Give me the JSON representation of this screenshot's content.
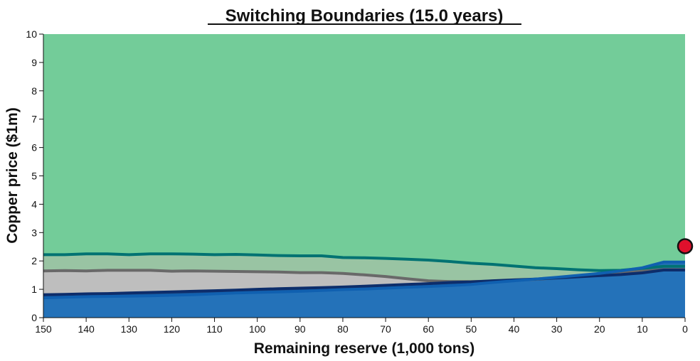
{
  "chart_data": {
    "type": "area",
    "title": "Switching Boundaries (15.0 years)",
    "xlabel": "Remaining reserve (1,000 tons)",
    "ylabel": "Copper price ($1m)",
    "xlim": [
      150,
      0
    ],
    "ylim": [
      0,
      10
    ],
    "x_reversed": true,
    "x_ticks": [
      150,
      140,
      130,
      120,
      110,
      100,
      90,
      80,
      70,
      60,
      50,
      40,
      30,
      20,
      10,
      0
    ],
    "y_ticks": [
      0,
      1,
      2,
      3,
      4,
      5,
      6,
      7,
      8,
      9,
      10
    ],
    "grid": false,
    "legend": "none",
    "background_color": "#73cc99",
    "series": [
      {
        "key": "teal",
        "line_color": "#007272",
        "fill_color": "#99c4a3",
        "points": [
          [
            150,
            2.22
          ],
          [
            145,
            2.22
          ],
          [
            140,
            2.25
          ],
          [
            135,
            2.25
          ],
          [
            130,
            2.22
          ],
          [
            125,
            2.25
          ],
          [
            120,
            2.25
          ],
          [
            115,
            2.24
          ],
          [
            110,
            2.22
          ],
          [
            105,
            2.23
          ],
          [
            100,
            2.21
          ],
          [
            95,
            2.19
          ],
          [
            90,
            2.18
          ],
          [
            85,
            2.18
          ],
          [
            80,
            2.12
          ],
          [
            75,
            2.11
          ],
          [
            70,
            2.09
          ],
          [
            65,
            2.06
          ],
          [
            60,
            2.03
          ],
          [
            55,
            1.98
          ],
          [
            50,
            1.92
          ],
          [
            45,
            1.88
          ],
          [
            40,
            1.82
          ],
          [
            35,
            1.76
          ],
          [
            30,
            1.73
          ],
          [
            25,
            1.69
          ],
          [
            20,
            1.66
          ],
          [
            15,
            1.67
          ],
          [
            10,
            1.74
          ],
          [
            5,
            1.81
          ],
          [
            0,
            1.81
          ]
        ]
      },
      {
        "key": "gray",
        "line_color": "#696969",
        "fill_color": "#bebebe",
        "points": [
          [
            150,
            1.65
          ],
          [
            145,
            1.66
          ],
          [
            140,
            1.65
          ],
          [
            135,
            1.67
          ],
          [
            130,
            1.67
          ],
          [
            125,
            1.67
          ],
          [
            120,
            1.64
          ],
          [
            115,
            1.65
          ],
          [
            110,
            1.64
          ],
          [
            105,
            1.63
          ],
          [
            100,
            1.62
          ],
          [
            95,
            1.61
          ],
          [
            90,
            1.59
          ],
          [
            85,
            1.59
          ],
          [
            80,
            1.56
          ],
          [
            75,
            1.51
          ],
          [
            70,
            1.45
          ],
          [
            65,
            1.37
          ],
          [
            60,
            1.3
          ],
          [
            55,
            1.27
          ],
          [
            50,
            1.27
          ],
          [
            45,
            1.29
          ],
          [
            40,
            1.32
          ],
          [
            35,
            1.35
          ],
          [
            30,
            1.4
          ],
          [
            25,
            1.45
          ],
          [
            20,
            1.5
          ],
          [
            15,
            1.57
          ],
          [
            10,
            1.64
          ],
          [
            5,
            1.7
          ],
          [
            0,
            1.7
          ]
        ]
      },
      {
        "key": "navy",
        "line_color": "#0d2d6b",
        "fill_color": "#1b4f8c",
        "points": [
          [
            150,
            0.81
          ],
          [
            145,
            0.82
          ],
          [
            140,
            0.84
          ],
          [
            135,
            0.85
          ],
          [
            130,
            0.87
          ],
          [
            125,
            0.89
          ],
          [
            120,
            0.91
          ],
          [
            115,
            0.93
          ],
          [
            110,
            0.95
          ],
          [
            105,
            0.97
          ],
          [
            100,
            1.0
          ],
          [
            95,
            1.02
          ],
          [
            90,
            1.04
          ],
          [
            85,
            1.06
          ],
          [
            80,
            1.08
          ],
          [
            75,
            1.11
          ],
          [
            70,
            1.14
          ],
          [
            65,
            1.17
          ],
          [
            60,
            1.2
          ],
          [
            55,
            1.24
          ],
          [
            50,
            1.26
          ],
          [
            45,
            1.3
          ],
          [
            40,
            1.33
          ],
          [
            35,
            1.36
          ],
          [
            30,
            1.4
          ],
          [
            25,
            1.44
          ],
          [
            20,
            1.48
          ],
          [
            15,
            1.52
          ],
          [
            10,
            1.58
          ],
          [
            5,
            1.68
          ],
          [
            0,
            1.68
          ]
        ]
      },
      {
        "key": "blue",
        "line_color": "#1060b0",
        "fill_color": "#2472b9",
        "points": [
          [
            150,
            0.7
          ],
          [
            145,
            0.72
          ],
          [
            140,
            0.74
          ],
          [
            135,
            0.75
          ],
          [
            130,
            0.76
          ],
          [
            125,
            0.77
          ],
          [
            120,
            0.79
          ],
          [
            115,
            0.81
          ],
          [
            110,
            0.84
          ],
          [
            105,
            0.87
          ],
          [
            100,
            0.89
          ],
          [
            95,
            0.91
          ],
          [
            90,
            0.93
          ],
          [
            85,
            0.96
          ],
          [
            80,
            0.99
          ],
          [
            75,
            1.01
          ],
          [
            70,
            1.04
          ],
          [
            65,
            1.07
          ],
          [
            60,
            1.1
          ],
          [
            55,
            1.13
          ],
          [
            50,
            1.17
          ],
          [
            45,
            1.24
          ],
          [
            40,
            1.3
          ],
          [
            35,
            1.36
          ],
          [
            30,
            1.42
          ],
          [
            25,
            1.49
          ],
          [
            20,
            1.56
          ],
          [
            15,
            1.65
          ],
          [
            10,
            1.76
          ],
          [
            5,
            1.96
          ],
          [
            0,
            1.96
          ]
        ]
      }
    ],
    "marker": {
      "x": 0,
      "y": 2.52,
      "color": "#e0102c",
      "edge_color": "#111111"
    }
  }
}
